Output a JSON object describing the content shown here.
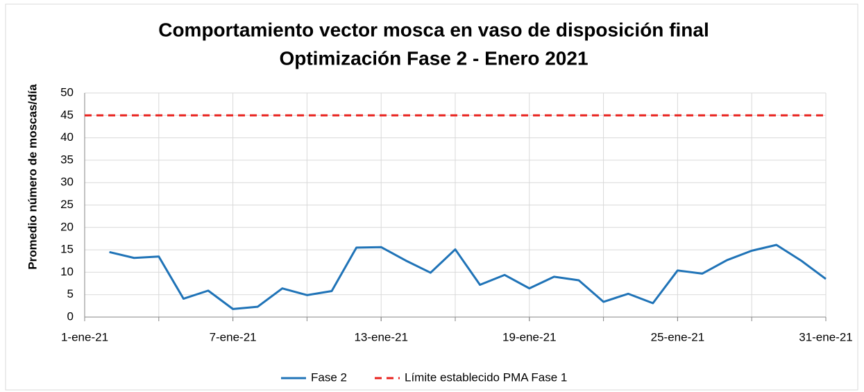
{
  "chart_data": {
    "type": "line",
    "title": [
      "Comportamiento vector mosca en  vaso de disposición final",
      "Optimización Fase 2 - Enero 2021"
    ],
    "y_label": "Promedio número de moscas/día",
    "xlim": [
      "2021-01-01",
      "2021-01-31"
    ],
    "xticks": [
      {
        "value": "2021-01-01",
        "label": "1-ene-21"
      },
      {
        "value": "2021-01-07",
        "label": "7-ene-21"
      },
      {
        "value": "2021-01-13",
        "label": "13-ene-21"
      },
      {
        "value": "2021-01-19",
        "label": "19-ene-21"
      },
      {
        "value": "2021-01-25",
        "label": "25-ene-21"
      },
      {
        "value": "2021-01-31",
        "label": "31-ene-21"
      }
    ],
    "xgrid_step_days": 3,
    "ylim": [
      0,
      50
    ],
    "yticks": [
      0,
      5,
      10,
      15,
      20,
      25,
      30,
      35,
      40,
      45,
      50
    ],
    "grid": true,
    "legend": "bottom",
    "series": [
      {
        "name": "Fase 2",
        "color": "#1f73b7",
        "dash": false,
        "x": [
          "2021-01-02",
          "2021-01-03",
          "2021-01-04",
          "2021-01-05",
          "2021-01-06",
          "2021-01-07",
          "2021-01-08",
          "2021-01-09",
          "2021-01-10",
          "2021-01-11",
          "2021-01-12",
          "2021-01-13",
          "2021-01-14",
          "2021-01-15",
          "2021-01-16",
          "2021-01-17",
          "2021-01-18",
          "2021-01-19",
          "2021-01-20",
          "2021-01-21",
          "2021-01-22",
          "2021-01-23",
          "2021-01-24",
          "2021-01-25",
          "2021-01-26",
          "2021-01-27",
          "2021-01-28",
          "2021-01-29",
          "2021-01-30",
          "2021-01-31"
        ],
        "values": [
          14.5,
          13.2,
          13.5,
          4.1,
          5.9,
          1.8,
          2.3,
          6.4,
          4.9,
          5.8,
          15.5,
          15.6,
          12.6,
          9.9,
          15.1,
          7.2,
          9.4,
          6.4,
          9.0,
          8.2,
          3.4,
          5.2,
          3.1,
          10.4,
          9.7,
          12.7,
          14.8,
          16.1,
          12.6,
          8.5
        ]
      },
      {
        "name": "Límite establecido PMA Fase 1",
        "color": "#e8201c",
        "dash": true,
        "x": [
          "2021-01-01",
          "2021-01-31"
        ],
        "values": [
          45,
          45
        ]
      }
    ]
  }
}
